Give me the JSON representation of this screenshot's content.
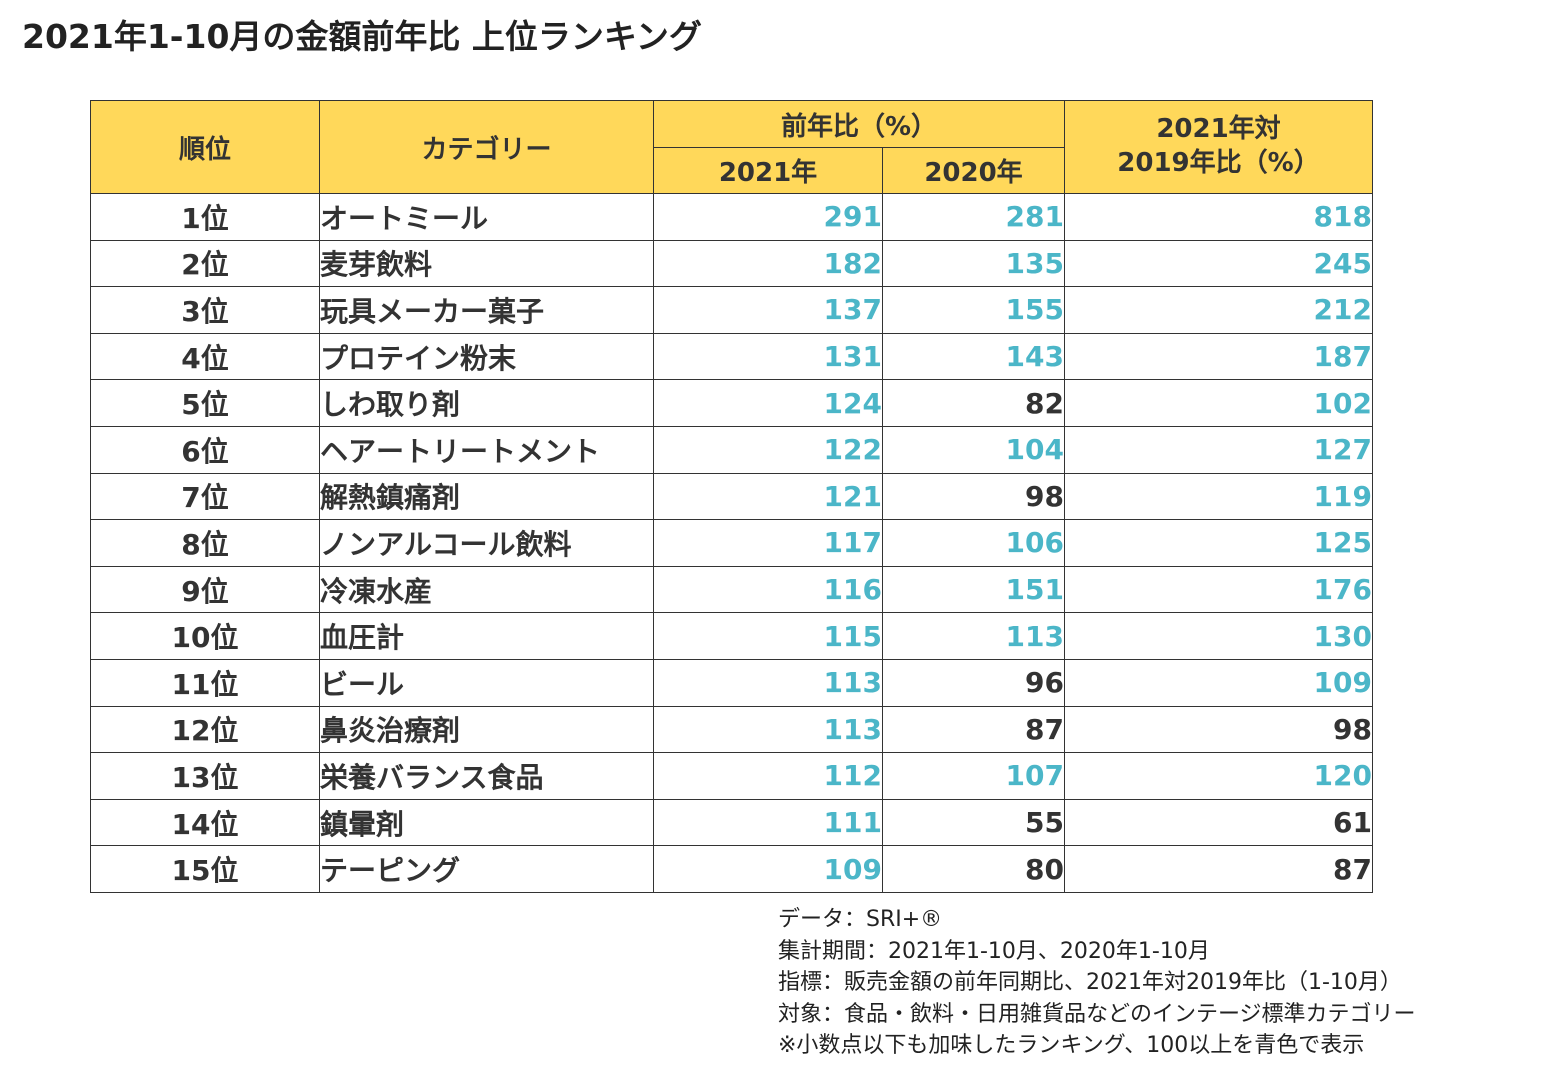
{
  "title": "2021年1-10月の金額前年比 上位ランキング",
  "header": {
    "rank": "順位",
    "category": "カテゴリー",
    "yoy_group": "前年比（%）",
    "y2021": "2021年",
    "y2020": "2020年",
    "vs2019_line1": "2021年対",
    "vs2019_line2": "2019年比（%）"
  },
  "colors": {
    "header_bg": "#ffd85a",
    "highlight": "#4bb6c8",
    "text": "#333333"
  },
  "highlight_threshold": 100,
  "chart_data": {
    "type": "table",
    "title": "2021年1-10月の金額前年比 上位ランキング",
    "columns": [
      "順位",
      "カテゴリー",
      "2021年",
      "2020年",
      "2021年対2019年比（%）"
    ],
    "rows": [
      {
        "rank": "1位",
        "category": "オートミール",
        "y2021": 291,
        "y2020": 281,
        "vs2019": 818
      },
      {
        "rank": "2位",
        "category": "麦芽飲料",
        "y2021": 182,
        "y2020": 135,
        "vs2019": 245
      },
      {
        "rank": "3位",
        "category": "玩具メーカー菓子",
        "y2021": 137,
        "y2020": 155,
        "vs2019": 212
      },
      {
        "rank": "4位",
        "category": "プロテイン粉末",
        "y2021": 131,
        "y2020": 143,
        "vs2019": 187
      },
      {
        "rank": "5位",
        "category": "しわ取り剤",
        "y2021": 124,
        "y2020": 82,
        "vs2019": 102
      },
      {
        "rank": "6位",
        "category": "ヘアートリートメント",
        "y2021": 122,
        "y2020": 104,
        "vs2019": 127
      },
      {
        "rank": "7位",
        "category": "解熱鎮痛剤",
        "y2021": 121,
        "y2020": 98,
        "vs2019": 119
      },
      {
        "rank": "8位",
        "category": "ノンアルコール飲料",
        "y2021": 117,
        "y2020": 106,
        "vs2019": 125
      },
      {
        "rank": "9位",
        "category": "冷凍水産",
        "y2021": 116,
        "y2020": 151,
        "vs2019": 176
      },
      {
        "rank": "10位",
        "category": "血圧計",
        "y2021": 115,
        "y2020": 113,
        "vs2019": 130
      },
      {
        "rank": "11位",
        "category": "ビール",
        "y2021": 113,
        "y2020": 96,
        "vs2019": 109
      },
      {
        "rank": "12位",
        "category": "鼻炎治療剤",
        "y2021": 113,
        "y2020": 87,
        "vs2019": 98
      },
      {
        "rank": "13位",
        "category": "栄養バランス食品",
        "y2021": 112,
        "y2020": 107,
        "vs2019": 120
      },
      {
        "rank": "14位",
        "category": "鎮暈剤",
        "y2021": 111,
        "y2020": 55,
        "vs2019": 61
      },
      {
        "rank": "15位",
        "category": "テーピング",
        "y2021": 109,
        "y2020": 80,
        "vs2019": 87
      }
    ]
  },
  "notes": [
    "データ：SRI+®",
    "集計期間：2021年1-10月、2020年1-10月",
    "指標：販売金額の前年同期比、2021年対2019年比（1-10月）",
    "対象：食品・飲料・日用雑貨品などのインテージ標準カテゴリー",
    "※小数点以下も加味したランキング、100以上を青色で表示"
  ]
}
